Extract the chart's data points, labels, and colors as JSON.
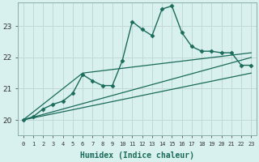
{
  "xlabel": "Humidex (Indice chaleur)",
  "xlim": [
    -0.5,
    23.5
  ],
  "ylim": [
    19.5,
    23.75
  ],
  "yticks": [
    20,
    21,
    22,
    23
  ],
  "xticks": [
    0,
    1,
    2,
    3,
    4,
    5,
    6,
    7,
    8,
    9,
    10,
    11,
    12,
    13,
    14,
    15,
    16,
    17,
    18,
    19,
    20,
    21,
    22,
    23
  ],
  "bg_color": "#d8f0ee",
  "grid_color": "#c2d8d6",
  "line_color": "#1a6b5a",
  "spine_color": "#8aadaa",
  "lines": [
    {
      "x": [
        0,
        1,
        2,
        3,
        4,
        5,
        6,
        7,
        8,
        9,
        10,
        11,
        12,
        13,
        14,
        15,
        16,
        17,
        18,
        19,
        20,
        21,
        22,
        23
      ],
      "y": [
        20.0,
        20.1,
        20.35,
        20.5,
        20.6,
        20.85,
        21.45,
        21.25,
        21.1,
        21.1,
        21.9,
        23.15,
        22.9,
        22.7,
        23.55,
        23.65,
        22.8,
        22.35,
        22.2,
        22.2,
        22.15,
        22.15,
        21.75,
        21.75
      ],
      "marker": "D",
      "markersize": 2.5,
      "linewidth": 1.0,
      "has_marker": true
    },
    {
      "x": [
        0,
        6,
        23
      ],
      "y": [
        20.0,
        21.5,
        22.15
      ],
      "marker": null,
      "markersize": 0,
      "linewidth": 0.9,
      "has_marker": false
    },
    {
      "x": [
        0,
        23
      ],
      "y": [
        20.0,
        22.0
      ],
      "marker": null,
      "markersize": 0,
      "linewidth": 0.9,
      "has_marker": false
    },
    {
      "x": [
        0,
        23
      ],
      "y": [
        20.0,
        21.5
      ],
      "marker": null,
      "markersize": 0,
      "linewidth": 0.9,
      "has_marker": false
    }
  ]
}
